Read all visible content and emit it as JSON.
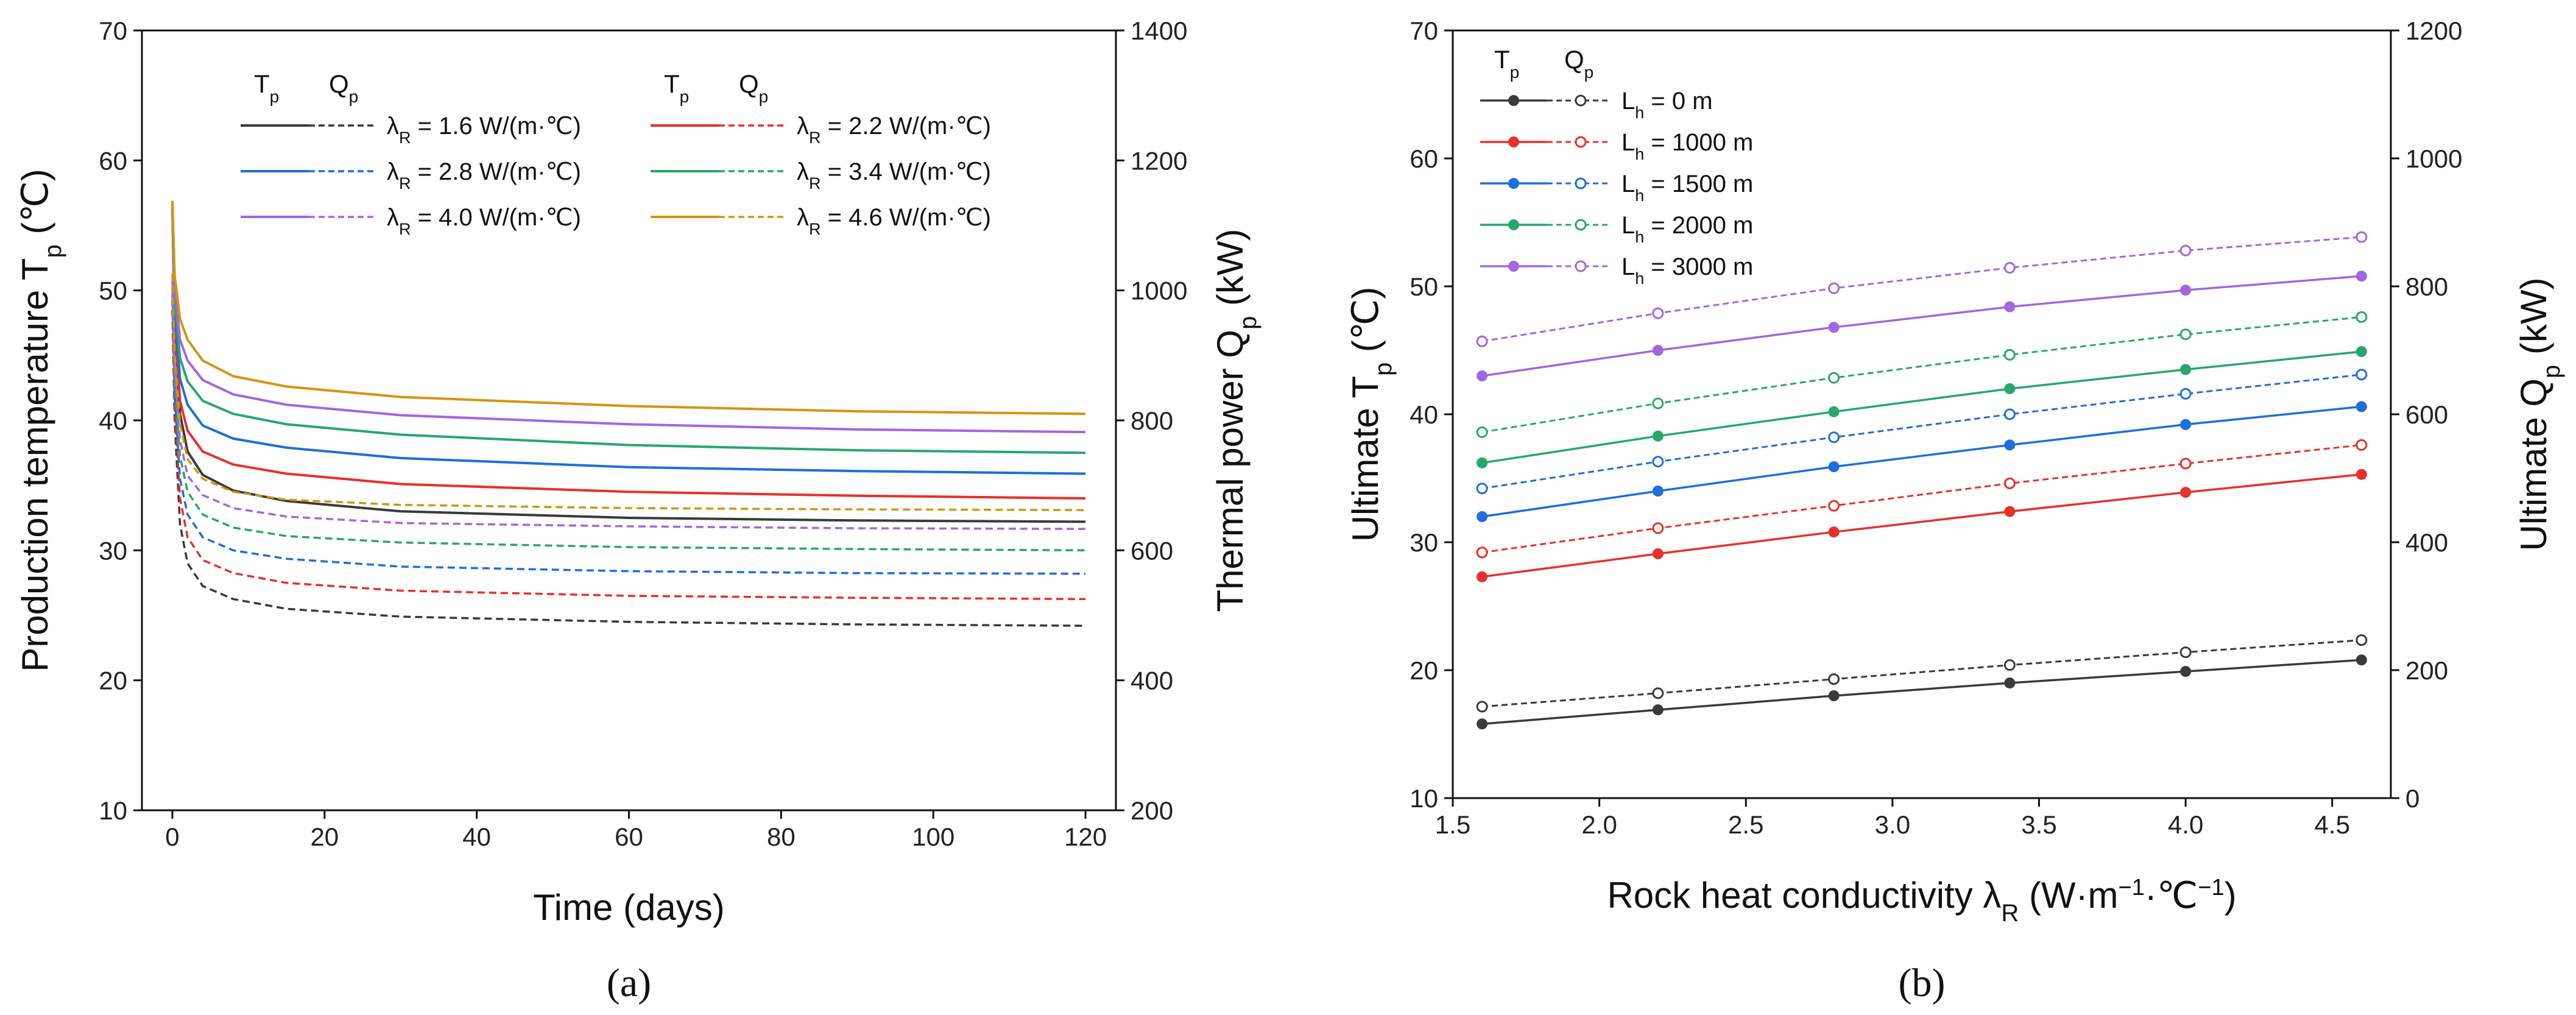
{
  "chart_data": [
    {
      "panel": "(a)",
      "type": "line",
      "xlabel": "Time (days)",
      "ylabel": "Production temperature T",
      "ylabel_sub": "p",
      "ylabel_unit": " (℃)",
      "y2label": "Thermal power Q",
      "y2label_sub": "p",
      "y2label_unit": " (kW)",
      "xlim": [
        -4,
        124
      ],
      "ylim": [
        10,
        70
      ],
      "y2lim": [
        200,
        1400
      ],
      "xticks": [
        0,
        20,
        40,
        60,
        80,
        100,
        120
      ],
      "yticks": [
        10,
        20,
        30,
        40,
        50,
        60,
        70
      ],
      "y2ticks": [
        200,
        400,
        600,
        800,
        1000,
        1200,
        1400
      ],
      "legend_headers": [
        {
          "t": "T",
          "t_sub": "p",
          "q": "Q",
          "q_sub": "p"
        },
        {
          "t": "T",
          "t_sub": "p",
          "q": "Q",
          "q_sub": "p"
        }
      ],
      "legend_prefix": "λ",
      "legend_prefix_sub": "R",
      "legend_unit": " W/(m·℃)",
      "series": [
        {
          "lambda": "1.6",
          "color": "#3a3a3a",
          "Tp": {
            "x": [
              0,
              0.3,
              1,
              2,
              4,
              8,
              15,
              30,
              60,
              90,
              120
            ],
            "y": [
              56.5,
              47.5,
              40.5,
              37.6,
              35.8,
              34.6,
              33.8,
              33.0,
              32.5,
              32.3,
              32.2
            ]
          },
          "Qp": {
            "x": [
              0,
              0.3,
              1,
              2,
              4,
              8,
              15,
              30,
              60,
              90,
              120
            ],
            "y": [
              970,
              800,
              640,
              580,
              545,
              525,
              510,
              498,
              490,
              486,
              484
            ]
          }
        },
        {
          "lambda": "2.2",
          "color": "#e8302a",
          "Tp": {
            "x": [
              0,
              0.3,
              1,
              2,
              4,
              8,
              15,
              30,
              60,
              90,
              120
            ],
            "y": [
              56.5,
              48.0,
              41.5,
              39.2,
              37.6,
              36.6,
              35.9,
              35.1,
              34.5,
              34.2,
              34.0
            ]
          },
          "Qp": {
            "x": [
              0,
              0.3,
              1,
              2,
              4,
              8,
              15,
              30,
              60,
              90,
              120
            ],
            "y": [
              985,
              820,
              680,
              620,
              585,
              565,
              550,
              538,
              530,
              527,
              525
            ]
          }
        },
        {
          "lambda": "2.8",
          "color": "#1e6fd9",
          "Tp": {
            "x": [
              0,
              0.3,
              1,
              2,
              4,
              8,
              15,
              30,
              60,
              90,
              120
            ],
            "y": [
              56.5,
              48.8,
              43.2,
              41.2,
              39.6,
              38.6,
              37.9,
              37.1,
              36.4,
              36.1,
              35.9
            ]
          },
          "Qp": {
            "x": [
              0,
              0.3,
              1,
              2,
              4,
              8,
              15,
              30,
              60,
              90,
              120
            ],
            "y": [
              995,
              840,
              710,
              655,
              620,
              600,
              587,
              575,
              568,
              565,
              564
            ]
          }
        },
        {
          "lambda": "3.4",
          "color": "#27a86a",
          "Tp": {
            "x": [
              0,
              0.3,
              1,
              2,
              4,
              8,
              15,
              30,
              60,
              90,
              120
            ],
            "y": [
              56.8,
              49.6,
              44.8,
              43.0,
              41.5,
              40.5,
              39.7,
              38.9,
              38.1,
              37.7,
              37.5
            ]
          },
          "Qp": {
            "x": [
              0,
              0.3,
              1,
              2,
              4,
              8,
              15,
              30,
              60,
              90,
              120
            ],
            "y": [
              1005,
              860,
              745,
              690,
              655,
              635,
              622,
              612,
              605,
              602,
              600
            ]
          }
        },
        {
          "lambda": "4.0",
          "color": "#a267e0",
          "Tp": {
            "x": [
              0,
              0.3,
              1,
              2,
              4,
              8,
              15,
              30,
              60,
              90,
              120
            ],
            "y": [
              56.8,
              50.4,
              46.2,
              44.6,
              43.1,
              42.0,
              41.2,
              40.4,
              39.7,
              39.3,
              39.1
            ]
          },
          "Qp": {
            "x": [
              0,
              0.3,
              1,
              2,
              4,
              8,
              15,
              30,
              60,
              90,
              120
            ],
            "y": [
              1015,
              880,
              770,
              715,
              685,
              665,
              652,
              642,
              637,
              634,
              633
            ]
          }
        },
        {
          "lambda": "4.6",
          "color": "#d4950f",
          "Tp": {
            "x": [
              0,
              0.3,
              1,
              2,
              4,
              8,
              15,
              30,
              60,
              90,
              120
            ],
            "y": [
              56.9,
              51.2,
              47.8,
              46.2,
              44.6,
              43.4,
              42.6,
              41.8,
              41.1,
              40.7,
              40.5
            ]
          },
          "Qp": {
            "x": [
              0,
              0.3,
              1,
              2,
              4,
              8,
              15,
              30,
              60,
              90,
              120
            ],
            "y": [
              1025,
              900,
              795,
              740,
              710,
              690,
              678,
              670,
              665,
              663,
              662
            ]
          }
        }
      ]
    },
    {
      "panel": "(b)",
      "type": "line",
      "xlabel": "Rock heat conductivity λ",
      "xlabel_sub": "R",
      "xlabel_unit": " (W·m",
      "xlabel_unit_sup1": "−1",
      "xlabel_unit_mid": "·℃",
      "xlabel_unit_sup2": "−1",
      "xlabel_unit_end": ")",
      "ylabel": "Ultimate T",
      "ylabel_sub": "p",
      "ylabel_unit": " (℃)",
      "y2label": "Ultimate Q",
      "y2label_sub": "p",
      "y2label_unit": " (kW)",
      "xlim": [
        1.5,
        4.7
      ],
      "ylim": [
        10,
        70
      ],
      "y2lim": [
        0,
        1200
      ],
      "xticks": [
        "1.5",
        "2.0",
        "2.5",
        "3.0",
        "3.5",
        "4.0",
        "4.5"
      ],
      "yticks": [
        10,
        20,
        30,
        40,
        50,
        60,
        70
      ],
      "y2ticks": [
        0,
        200,
        400,
        600,
        800,
        1000,
        1200
      ],
      "legend_header": {
        "t": "T",
        "t_sub": "p",
        "q": "Q",
        "q_sub": "p"
      },
      "legend_prefix": "L",
      "legend_prefix_sub": "h",
      "x": [
        1.6,
        2.2,
        2.8,
        3.4,
        4.0,
        4.6
      ],
      "series": [
        {
          "name": "0 m",
          "color": "#3a3a3a",
          "Tp": [
            15.8,
            16.9,
            18.0,
            19.0,
            19.9,
            20.8
          ],
          "Qp": [
            143,
            164,
            186,
            208,
            228,
            247
          ]
        },
        {
          "name": "1000 m",
          "color": "#e8302a",
          "Tp": [
            27.3,
            29.1,
            30.8,
            32.4,
            33.9,
            35.3
          ],
          "Qp": [
            384,
            422,
            457,
            492,
            523,
            552
          ]
        },
        {
          "name": "1500 m",
          "color": "#1e6fd9",
          "Tp": [
            32.0,
            34.0,
            35.9,
            37.6,
            39.2,
            40.6
          ],
          "Qp": [
            484,
            526,
            564,
            600,
            632,
            662
          ]
        },
        {
          "name": "2000 m",
          "color": "#27a86a",
          "Tp": [
            36.2,
            38.3,
            40.2,
            42.0,
            43.5,
            44.9
          ],
          "Qp": [
            572,
            617,
            657,
            693,
            725,
            752
          ]
        },
        {
          "name": "3000 m",
          "color": "#a267e0",
          "Tp": [
            43.0,
            45.0,
            46.8,
            48.4,
            49.7,
            50.8
          ],
          "Qp": [
            714,
            758,
            797,
            829,
            856,
            877
          ]
        }
      ]
    }
  ]
}
